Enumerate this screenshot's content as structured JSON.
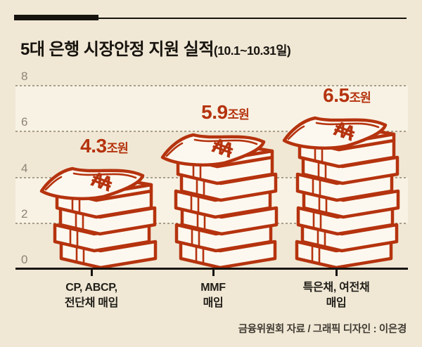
{
  "header": {
    "title": "5대 은행 시장안정 지원 실적",
    "title_suffix": "(10.1~10.31일)"
  },
  "footer": {
    "credit": "금융위원회 자료 / 그래픽 디자인 : 이은경"
  },
  "colors": {
    "background": "#f0e8d5",
    "band_light": "#f8f2e4",
    "accent_red": "#b5330e",
    "fill_cream": "#fcf8ef",
    "grid_dot": "#a89e8a",
    "y_label_gray": "#8d8476",
    "line_black": "#17130e"
  },
  "chart_data": {
    "type": "bar",
    "title": "5대 은행 시장안정 지원 실적(10.1~10.31일)",
    "categories": [
      "CP, ABCP, 전단채 매입",
      "MMF 매입",
      "특은채, 여전채 매입"
    ],
    "values": [
      4.3,
      5.9,
      6.5
    ],
    "value_numbers": [
      "4.3",
      "5.9",
      "6.5"
    ],
    "unit": "조원",
    "value_labels": [
      "4.3조원",
      "5.9조원",
      "6.5조원"
    ],
    "xlabel": "",
    "ylabel": "",
    "ylim": [
      0,
      8
    ],
    "yticks": [
      8,
      6,
      4,
      2,
      0
    ],
    "grid": "dotted horizontal, alternating light bands",
    "legend": "none",
    "bar_style": "money-bundle stack illustration, red outline",
    "bundles_per_bar": [
      4,
      6,
      7
    ],
    "currency_symbol": "₩",
    "source": "금융위원회 자료 / 그래픽 디자인 : 이은경"
  },
  "axes": {
    "y_tick_labels": [
      "8",
      "6",
      "4",
      "2",
      "0"
    ],
    "x_labels": [
      [
        "CP, ABCP,",
        "전단채 매입"
      ],
      [
        "MMF",
        "매입"
      ],
      [
        "특은채, 여전채",
        "매입"
      ]
    ]
  }
}
